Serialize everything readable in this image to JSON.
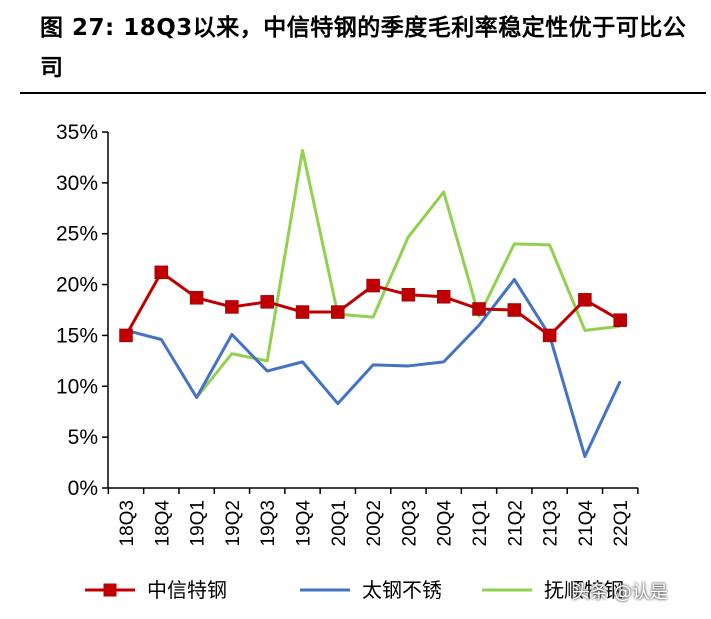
{
  "figure_title": "图 27: 18Q3以来，中信特钢的季度毛利率稳定性优于可比公司",
  "watermark": "头条 @认是",
  "chart_data": {
    "type": "line",
    "categories": [
      "18Q3",
      "18Q4",
      "19Q1",
      "19Q2",
      "19Q3",
      "19Q4",
      "20Q1",
      "20Q2",
      "20Q3",
      "20Q4",
      "21Q1",
      "21Q2",
      "21Q3",
      "21Q4",
      "22Q1"
    ],
    "ylim": [
      0,
      35
    ],
    "yticks": [
      0,
      5,
      10,
      15,
      20,
      25,
      30,
      35
    ],
    "ytick_labels": [
      "0%",
      "5%",
      "10%",
      "15%",
      "20%",
      "25%",
      "30%",
      "35%"
    ],
    "legend_position": "bottom",
    "grid": false,
    "series": [
      {
        "name": "中信特钢",
        "color": "#c00000",
        "marker": "square",
        "values": [
          15.0,
          21.2,
          18.7,
          17.8,
          18.3,
          17.3,
          17.3,
          19.9,
          19.0,
          18.8,
          17.6,
          17.5,
          15.0,
          18.5,
          16.5
        ]
      },
      {
        "name": "太钢不锈",
        "color": "#4472c4",
        "marker": "none",
        "values": [
          15.5,
          14.6,
          8.9,
          15.1,
          11.5,
          12.4,
          8.3,
          12.1,
          12.0,
          12.4,
          16.0,
          20.5,
          15.0,
          3.1,
          10.5
        ]
      },
      {
        "name": "抚顺特钢",
        "color": "#92d050",
        "marker": "none",
        "values": [
          null,
          null,
          8.9,
          13.2,
          12.5,
          33.2,
          17.1,
          16.8,
          24.7,
          29.1,
          16.9,
          24.0,
          23.9,
          15.5,
          15.9
        ]
      }
    ]
  }
}
